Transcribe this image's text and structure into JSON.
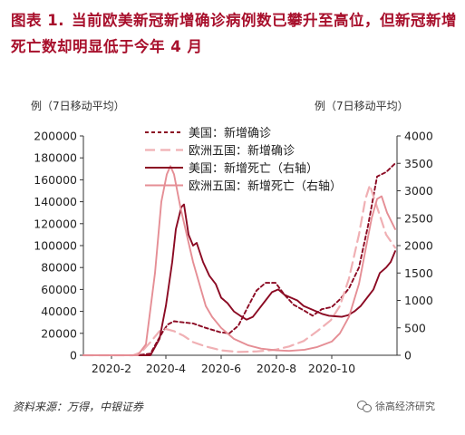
{
  "header": {
    "label": "图表 1.",
    "title": "当前欧美新冠新增确诊病例数已攀升至高位，但新冠新增死亡数却明显低于今年 4 月"
  },
  "footer": {
    "source": "资料来源：万得，中银证券",
    "watermark": "徐高经济研究",
    "watermark_icon": "wechat-icon"
  },
  "chart_data": {
    "type": "line",
    "left_axis_label": "例（7日移动平均）",
    "right_axis_label": "例（7日移动平均）",
    "ylim_left": [
      0,
      200000
    ],
    "ylim_right": [
      0,
      4000
    ],
    "yticks_left": [
      "0",
      "20000",
      "40000",
      "60000",
      "80000",
      "100000",
      "120000",
      "140000",
      "160000",
      "180000",
      "200000"
    ],
    "yticks_right": [
      "0",
      "500",
      "1000",
      "1500",
      "2000",
      "2500",
      "3000",
      "3500",
      "4000"
    ],
    "xticks": [
      "2020-2",
      "2020-4",
      "2020-6",
      "2020-8",
      "2020-10"
    ],
    "xlim": [
      "2020-01-01",
      "2020-12-12"
    ],
    "legend_position": "top-center",
    "series": [
      {
        "name": "美国：新增确诊",
        "axis": "left",
        "color": "#8b0a23",
        "style": "dashed",
        "points": [
          [
            "2020-01-01",
            0
          ],
          [
            "2020-03-01",
            0
          ],
          [
            "2020-03-15",
            1500
          ],
          [
            "2020-03-22",
            12000
          ],
          [
            "2020-03-29",
            22000
          ],
          [
            "2020-04-03",
            28000
          ],
          [
            "2020-04-10",
            31000
          ],
          [
            "2020-04-20",
            30000
          ],
          [
            "2020-05-01",
            29000
          ],
          [
            "2020-05-15",
            25000
          ],
          [
            "2020-05-31",
            21000
          ],
          [
            "2020-06-10",
            20000
          ],
          [
            "2020-06-20",
            27000
          ],
          [
            "2020-07-01",
            45000
          ],
          [
            "2020-07-10",
            59000
          ],
          [
            "2020-07-20",
            66000
          ],
          [
            "2020-07-31",
            66000
          ],
          [
            "2020-08-10",
            55000
          ],
          [
            "2020-08-20",
            46000
          ],
          [
            "2020-08-31",
            41000
          ],
          [
            "2020-09-10",
            36000
          ],
          [
            "2020-09-20",
            42000
          ],
          [
            "2020-10-01",
            44000
          ],
          [
            "2020-10-10",
            51000
          ],
          [
            "2020-10-20",
            61000
          ],
          [
            "2020-10-31",
            80000
          ],
          [
            "2020-11-10",
            118000
          ],
          [
            "2020-11-20",
            163000
          ],
          [
            "2020-11-30",
            167000
          ],
          [
            "2020-12-10",
            175000
          ]
        ]
      },
      {
        "name": "欧洲五国：新增确诊",
        "axis": "left",
        "color": "#f0b0b4",
        "style": "dashed",
        "points": [
          [
            "2020-01-01",
            0
          ],
          [
            "2020-02-25",
            0
          ],
          [
            "2020-03-05",
            3000
          ],
          [
            "2020-03-15",
            12000
          ],
          [
            "2020-03-25",
            22000
          ],
          [
            "2020-04-01",
            24000
          ],
          [
            "2020-04-10",
            22000
          ],
          [
            "2020-04-20",
            18000
          ],
          [
            "2020-05-01",
            12000
          ],
          [
            "2020-05-15",
            8000
          ],
          [
            "2020-06-01",
            4500
          ],
          [
            "2020-06-20",
            3000
          ],
          [
            "2020-07-10",
            3500
          ],
          [
            "2020-07-31",
            5000
          ],
          [
            "2020-08-15",
            8000
          ],
          [
            "2020-08-31",
            13000
          ],
          [
            "2020-09-15",
            22000
          ],
          [
            "2020-09-30",
            32000
          ],
          [
            "2020-10-10",
            45000
          ],
          [
            "2020-10-20",
            70000
          ],
          [
            "2020-10-31",
            110000
          ],
          [
            "2020-11-07",
            142000
          ],
          [
            "2020-11-12",
            155000
          ],
          [
            "2020-11-20",
            135000
          ],
          [
            "2020-11-30",
            110000
          ],
          [
            "2020-12-10",
            98000
          ]
        ]
      },
      {
        "name": "美国：新增死亡（右轴）",
        "axis": "right",
        "color": "#8b0a23",
        "style": "solid",
        "points": [
          [
            "2020-01-01",
            0
          ],
          [
            "2020-03-15",
            0
          ],
          [
            "2020-03-25",
            300
          ],
          [
            "2020-04-01",
            900
          ],
          [
            "2020-04-08",
            1700
          ],
          [
            "2020-04-12",
            2300
          ],
          [
            "2020-04-18",
            2700
          ],
          [
            "2020-04-21",
            2750
          ],
          [
            "2020-04-26",
            2200
          ],
          [
            "2020-05-01",
            2000
          ],
          [
            "2020-05-05",
            2050
          ],
          [
            "2020-05-12",
            1700
          ],
          [
            "2020-05-19",
            1450
          ],
          [
            "2020-05-26",
            1300
          ],
          [
            "2020-06-01",
            1050
          ],
          [
            "2020-06-08",
            950
          ],
          [
            "2020-06-15",
            800
          ],
          [
            "2020-06-22",
            720
          ],
          [
            "2020-06-29",
            650
          ],
          [
            "2020-07-06",
            700
          ],
          [
            "2020-07-13",
            850
          ],
          [
            "2020-07-20",
            1000
          ],
          [
            "2020-07-27",
            1150
          ],
          [
            "2020-08-03",
            1200
          ],
          [
            "2020-08-10",
            1100
          ],
          [
            "2020-08-17",
            1050
          ],
          [
            "2020-08-24",
            1000
          ],
          [
            "2020-08-31",
            900
          ],
          [
            "2020-09-07",
            850
          ],
          [
            "2020-09-14",
            800
          ],
          [
            "2020-09-21",
            750
          ],
          [
            "2020-09-28",
            720
          ],
          [
            "2020-10-05",
            710
          ],
          [
            "2020-10-12",
            700
          ],
          [
            "2020-10-19",
            730
          ],
          [
            "2020-10-26",
            800
          ],
          [
            "2020-11-02",
            900
          ],
          [
            "2020-11-09",
            1050
          ],
          [
            "2020-11-16",
            1200
          ],
          [
            "2020-11-23",
            1500
          ],
          [
            "2020-11-30",
            1600
          ],
          [
            "2020-12-05",
            1700
          ],
          [
            "2020-12-10",
            1900
          ]
        ]
      },
      {
        "name": "欧洲五国：新增死亡（右轴）",
        "axis": "right",
        "color": "#e58e95",
        "style": "solid",
        "points": [
          [
            "2020-01-01",
            0
          ],
          [
            "2020-03-01",
            0
          ],
          [
            "2020-03-10",
            200
          ],
          [
            "2020-03-20",
            1500
          ],
          [
            "2020-03-27",
            2800
          ],
          [
            "2020-04-02",
            3300
          ],
          [
            "2020-04-06",
            3450
          ],
          [
            "2020-04-10",
            3300
          ],
          [
            "2020-04-17",
            2700
          ],
          [
            "2020-04-24",
            2200
          ],
          [
            "2020-05-01",
            1700
          ],
          [
            "2020-05-08",
            1300
          ],
          [
            "2020-05-15",
            900
          ],
          [
            "2020-05-22",
            700
          ],
          [
            "2020-06-01",
            500
          ],
          [
            "2020-06-15",
            300
          ],
          [
            "2020-07-01",
            180
          ],
          [
            "2020-07-15",
            120
          ],
          [
            "2020-08-01",
            90
          ],
          [
            "2020-08-15",
            80
          ],
          [
            "2020-09-01",
            100
          ],
          [
            "2020-09-15",
            150
          ],
          [
            "2020-10-01",
            250
          ],
          [
            "2020-10-10",
            400
          ],
          [
            "2020-10-20",
            700
          ],
          [
            "2020-10-31",
            1300
          ],
          [
            "2020-11-07",
            1900
          ],
          [
            "2020-11-14",
            2500
          ],
          [
            "2020-11-20",
            2850
          ],
          [
            "2020-11-25",
            2900
          ],
          [
            "2020-12-01",
            2600
          ],
          [
            "2020-12-10",
            2300
          ]
        ]
      }
    ]
  }
}
